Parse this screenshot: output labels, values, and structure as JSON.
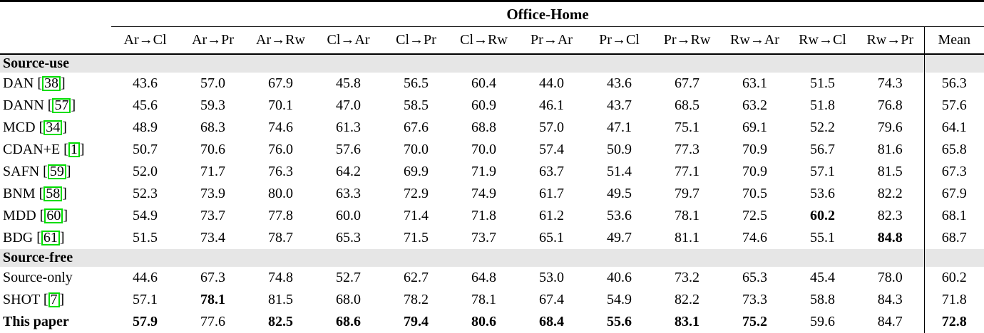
{
  "table": {
    "group_header": "Office-Home",
    "columns": [
      "Ar→Cl",
      "Ar→Pr",
      "Ar→Rw",
      "Cl→Ar",
      "Cl→Pr",
      "Cl→Rw",
      "Pr→Ar",
      "Pr→Cl",
      "Pr→Rw",
      "Rw→Ar",
      "Rw→Cl",
      "Rw→Pr"
    ],
    "mean_column": "Mean",
    "sections": [
      {
        "label": "Source-use",
        "rows": [
          {
            "method": "DAN",
            "cite": "38",
            "bold_label": false,
            "values": [
              "43.6",
              "57.0",
              "67.9",
              "45.8",
              "56.5",
              "60.4",
              "44.0",
              "43.6",
              "67.7",
              "63.1",
              "51.5",
              "74.3",
              "56.3"
            ],
            "bold": []
          },
          {
            "method": "DANN",
            "cite": "57",
            "bold_label": false,
            "values": [
              "45.6",
              "59.3",
              "70.1",
              "47.0",
              "58.5",
              "60.9",
              "46.1",
              "43.7",
              "68.5",
              "63.2",
              "51.8",
              "76.8",
              "57.6"
            ],
            "bold": []
          },
          {
            "method": "MCD",
            "cite": "34",
            "bold_label": false,
            "values": [
              "48.9",
              "68.3",
              "74.6",
              "61.3",
              "67.6",
              "68.8",
              "57.0",
              "47.1",
              "75.1",
              "69.1",
              "52.2",
              "79.6",
              "64.1"
            ],
            "bold": []
          },
          {
            "method": "CDAN+E",
            "cite": "1",
            "bold_label": false,
            "values": [
              "50.7",
              "70.6",
              "76.0",
              "57.6",
              "70.0",
              "70.0",
              "57.4",
              "50.9",
              "77.3",
              "70.9",
              "56.7",
              "81.6",
              "65.8"
            ],
            "bold": []
          },
          {
            "method": "SAFN",
            "cite": "59",
            "bold_label": false,
            "values": [
              "52.0",
              "71.7",
              "76.3",
              "64.2",
              "69.9",
              "71.9",
              "63.7",
              "51.4",
              "77.1",
              "70.9",
              "57.1",
              "81.5",
              "67.3"
            ],
            "bold": []
          },
          {
            "method": "BNM",
            "cite": "58",
            "bold_label": false,
            "values": [
              "52.3",
              "73.9",
              "80.0",
              "63.3",
              "72.9",
              "74.9",
              "61.7",
              "49.5",
              "79.7",
              "70.5",
              "53.6",
              "82.2",
              "67.9"
            ],
            "bold": []
          },
          {
            "method": "MDD",
            "cite": "60",
            "bold_label": false,
            "values": [
              "54.9",
              "73.7",
              "77.8",
              "60.0",
              "71.4",
              "71.8",
              "61.2",
              "53.6",
              "78.1",
              "72.5",
              "60.2",
              "82.3",
              "68.1"
            ],
            "bold": [
              10
            ]
          },
          {
            "method": "BDG",
            "cite": "61",
            "bold_label": false,
            "values": [
              "51.5",
              "73.4",
              "78.7",
              "65.3",
              "71.5",
              "73.7",
              "65.1",
              "49.7",
              "81.1",
              "74.6",
              "55.1",
              "84.8",
              "68.7"
            ],
            "bold": [
              11
            ]
          }
        ]
      },
      {
        "label": "Source-free",
        "rows": [
          {
            "method": "Source-only",
            "cite": null,
            "bold_label": false,
            "values": [
              "44.6",
              "67.3",
              "74.8",
              "52.7",
              "62.7",
              "64.8",
              "53.0",
              "40.6",
              "73.2",
              "65.3",
              "45.4",
              "78.0",
              "60.2"
            ],
            "bold": []
          },
          {
            "method": "SHOT",
            "cite": "7",
            "bold_label": false,
            "values": [
              "57.1",
              "78.1",
              "81.5",
              "68.0",
              "78.2",
              "78.1",
              "67.4",
              "54.9",
              "82.2",
              "73.3",
              "58.8",
              "84.3",
              "71.8"
            ],
            "bold": [
              1
            ]
          },
          {
            "method": "This paper",
            "cite": null,
            "bold_label": true,
            "values": [
              "57.9",
              "77.6",
              "82.5",
              "68.6",
              "79.4",
              "80.6",
              "68.4",
              "55.6",
              "83.1",
              "75.2",
              "59.6",
              "84.7",
              "72.8"
            ],
            "bold": [
              0,
              2,
              3,
              4,
              5,
              6,
              7,
              8,
              9,
              12
            ]
          }
        ]
      }
    ]
  },
  "colors": {
    "band_bg": "#e6e6e6",
    "cite_border": "#00dd00",
    "text": "#000000",
    "rule": "#000000"
  }
}
